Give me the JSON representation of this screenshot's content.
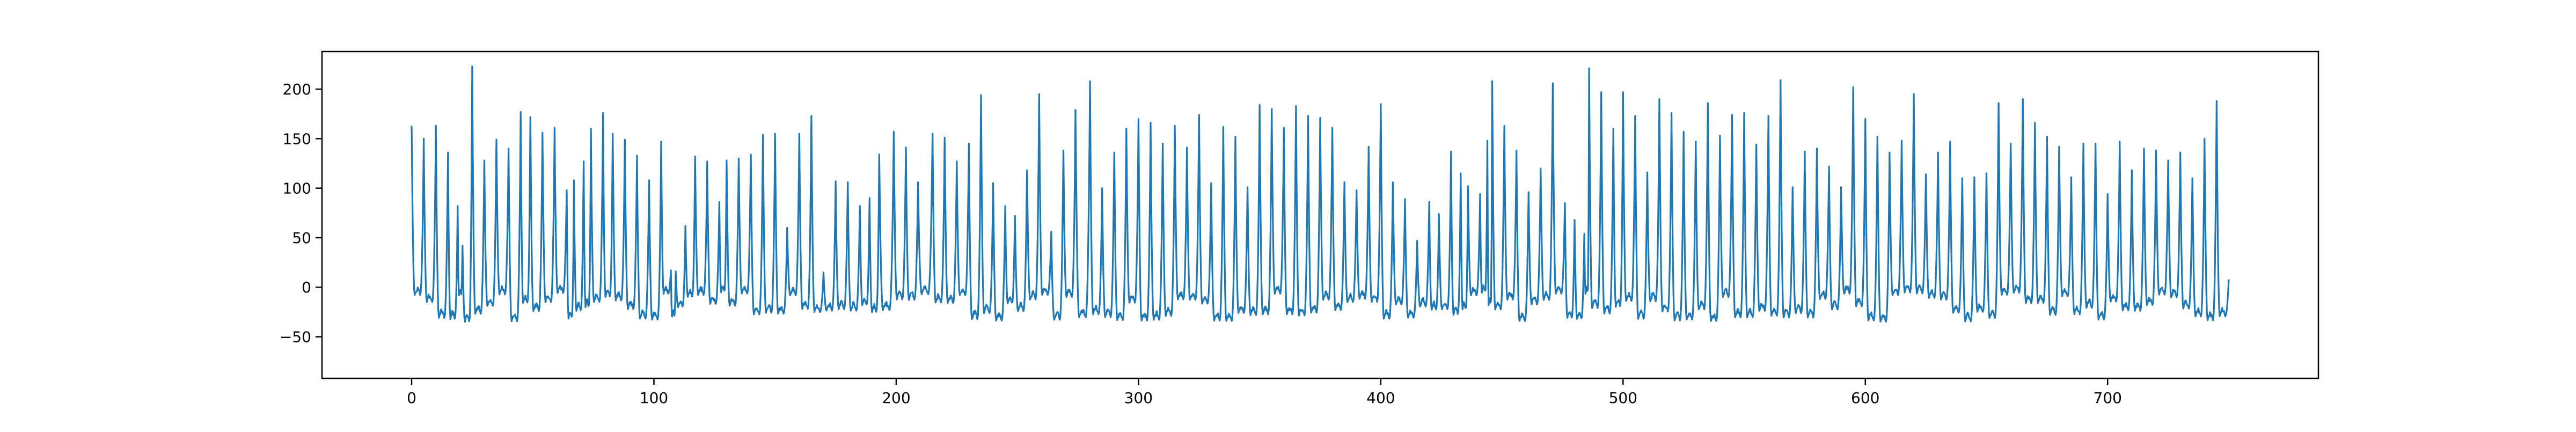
{
  "chart_data": {
    "type": "line",
    "title": "",
    "xlabel": "",
    "ylabel": "",
    "xlim": [
      -37,
      787
    ],
    "ylim": [
      -92,
      238
    ],
    "xticks": [
      0,
      100,
      200,
      300,
      400,
      500,
      600,
      700
    ],
    "yticks": [
      -50,
      0,
      50,
      100,
      150,
      200
    ],
    "xtick_labels": [
      "0",
      "100",
      "200",
      "300",
      "400",
      "500",
      "600",
      "700"
    ],
    "ytick_labels": [
      "−50",
      "0",
      "50",
      "100",
      "150",
      "200"
    ],
    "grid": false,
    "legend": "none",
    "series": [
      {
        "color": "#1f77b4",
        "n_points": 750,
        "peaks": [
          [
            0,
            163
          ],
          [
            5,
            150
          ],
          [
            10,
            163
          ],
          [
            15,
            136
          ],
          [
            19,
            82
          ],
          [
            21,
            42
          ],
          [
            25,
            223
          ],
          [
            30,
            128
          ],
          [
            35,
            149
          ],
          [
            40,
            140
          ],
          [
            45,
            177
          ],
          [
            49,
            172
          ],
          [
            54,
            156
          ],
          [
            59,
            161
          ],
          [
            64,
            98
          ],
          [
            67,
            108
          ],
          [
            71,
            127
          ],
          [
            74,
            160
          ],
          [
            79,
            176
          ],
          [
            83,
            155
          ],
          [
            88,
            149
          ],
          [
            93,
            133
          ],
          [
            98,
            108
          ],
          [
            103,
            147
          ],
          [
            107,
            17
          ],
          [
            109,
            16
          ],
          [
            113,
            62
          ],
          [
            117,
            132
          ],
          [
            122,
            127
          ],
          [
            127,
            86
          ],
          [
            130,
            128
          ],
          [
            135,
            130
          ],
          [
            140,
            134
          ],
          [
            145,
            154
          ],
          [
            150,
            155
          ],
          [
            155,
            60
          ],
          [
            160,
            155
          ],
          [
            165,
            173
          ],
          [
            170,
            15
          ],
          [
            175,
            107
          ],
          [
            180,
            106
          ],
          [
            185,
            82
          ],
          [
            189,
            90
          ],
          [
            193,
            134
          ],
          [
            199,
            157
          ],
          [
            204,
            141
          ],
          [
            209,
            106
          ],
          [
            215,
            155
          ],
          [
            220,
            151
          ],
          [
            225,
            127
          ],
          [
            230,
            145
          ],
          [
            235,
            194
          ],
          [
            240,
            105
          ],
          [
            245,
            82
          ],
          [
            249,
            72
          ],
          [
            254,
            118
          ],
          [
            259,
            195
          ],
          [
            264,
            56
          ],
          [
            269,
            138
          ],
          [
            274,
            179
          ],
          [
            280,
            208
          ],
          [
            285,
            100
          ],
          [
            290,
            136
          ],
          [
            295,
            160
          ],
          [
            300,
            170
          ],
          [
            305,
            166
          ],
          [
            310,
            145
          ],
          [
            315,
            163
          ],
          [
            320,
            141
          ],
          [
            325,
            174
          ],
          [
            330,
            105
          ],
          [
            335,
            162
          ],
          [
            340,
            152
          ],
          [
            345,
            101
          ],
          [
            350,
            184
          ],
          [
            355,
            180
          ],
          [
            360,
            161
          ],
          [
            365,
            183
          ],
          [
            370,
            173
          ],
          [
            375,
            171
          ],
          [
            380,
            161
          ],
          [
            385,
            106
          ],
          [
            390,
            98
          ],
          [
            395,
            142
          ],
          [
            400,
            185
          ],
          [
            405,
            106
          ],
          [
            410,
            89
          ],
          [
            415,
            47
          ],
          [
            420,
            86
          ],
          [
            424,
            74
          ],
          [
            429,
            137
          ],
          [
            433,
            115
          ],
          [
            436,
            102
          ],
          [
            441,
            94
          ],
          [
            444,
            148
          ],
          [
            446,
            208
          ],
          [
            451,
            163
          ],
          [
            456,
            138
          ],
          [
            461,
            96
          ],
          [
            466,
            120
          ],
          [
            471,
            206
          ],
          [
            476,
            85
          ],
          [
            480,
            68
          ],
          [
            484,
            54
          ],
          [
            486,
            221
          ],
          [
            491,
            197
          ],
          [
            496,
            160
          ],
          [
            500,
            197
          ],
          [
            505,
            173
          ],
          [
            510,
            116
          ],
          [
            515,
            190
          ],
          [
            520,
            176
          ],
          [
            525,
            157
          ],
          [
            530,
            147
          ],
          [
            535,
            186
          ],
          [
            540,
            153
          ],
          [
            545,
            174
          ],
          [
            550,
            176
          ],
          [
            555,
            144
          ],
          [
            560,
            173
          ],
          [
            565,
            209
          ],
          [
            570,
            101
          ],
          [
            575,
            137
          ],
          [
            580,
            140
          ],
          [
            585,
            122
          ],
          [
            590,
            101
          ],
          [
            595,
            202
          ],
          [
            600,
            170
          ],
          [
            605,
            152
          ],
          [
            610,
            136
          ],
          [
            615,
            148
          ],
          [
            620,
            195
          ],
          [
            625,
            114
          ],
          [
            630,
            136
          ],
          [
            635,
            147
          ],
          [
            640,
            110
          ],
          [
            645,
            111
          ],
          [
            650,
            115
          ],
          [
            655,
            186
          ],
          [
            660,
            145
          ],
          [
            665,
            190
          ],
          [
            670,
            166
          ],
          [
            675,
            152
          ],
          [
            680,
            142
          ],
          [
            685,
            111
          ],
          [
            690,
            145
          ],
          [
            695,
            145
          ],
          [
            700,
            94
          ],
          [
            705,
            147
          ],
          [
            710,
            118
          ],
          [
            715,
            140
          ],
          [
            720,
            138
          ],
          [
            725,
            128
          ],
          [
            730,
            136
          ],
          [
            735,
            110
          ],
          [
            740,
            150
          ],
          [
            745,
            188
          ],
          [
            750,
            8
          ]
        ]
      }
    ]
  }
}
